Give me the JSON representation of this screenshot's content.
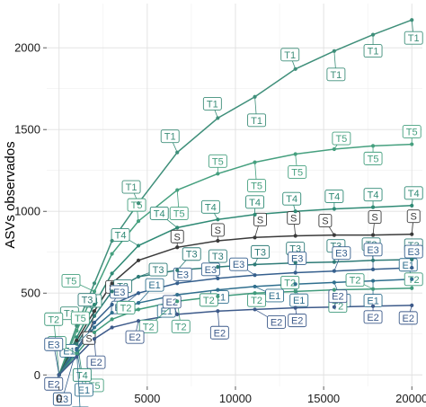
{
  "chart_data": {
    "type": "line",
    "title": "",
    "xlabel": "",
    "ylabel": "ASVs observados",
    "xlim": [
      -700,
      20600
    ],
    "ylim": [
      -70,
      2270
    ],
    "xticks": [
      0,
      5000,
      10000,
      15000,
      20000
    ],
    "xtick_labels": [
      "0",
      "5000",
      "10000",
      "15000",
      "20000"
    ],
    "yticks": [
      0,
      500,
      1000,
      1500,
      2000
    ],
    "ytick_labels": [
      "0",
      "500",
      "1000",
      "1500",
      "2000"
    ],
    "grid": true,
    "legend": "none",
    "series": [
      {
        "name": "T1",
        "color": "#3f8f7a",
        "x": [
          0,
          1000,
          2000,
          3000,
          4500,
          6700,
          9000,
          11100,
          13400,
          15600,
          17800,
          20000
        ],
        "y": [
          0,
          300,
          560,
          820,
          1050,
          1360,
          1570,
          1700,
          1870,
          1980,
          2080,
          2170
        ]
      },
      {
        "name": "T5",
        "color": "#46a07f",
        "x": [
          0,
          1000,
          2000,
          3000,
          4500,
          6700,
          9000,
          11100,
          13400,
          15600,
          17800,
          20000
        ],
        "y": [
          0,
          270,
          510,
          740,
          940,
          1130,
          1230,
          1300,
          1350,
          1380,
          1400,
          1410
        ]
      },
      {
        "name": "T4",
        "color": "#2f8a75",
        "x": [
          0,
          1000,
          2000,
          3000,
          4500,
          6700,
          9000,
          11100,
          13400,
          15600,
          17800,
          20000
        ],
        "y": [
          0,
          230,
          430,
          620,
          790,
          900,
          950,
          980,
          1000,
          1015,
          1025,
          1035
        ]
      },
      {
        "name": "S",
        "color": "#3a3a3a",
        "x": [
          0,
          1000,
          2000,
          3000,
          4500,
          6700,
          9000,
          11100,
          13400,
          15600,
          17800,
          20000
        ],
        "y": [
          0,
          210,
          390,
          560,
          700,
          780,
          820,
          840,
          850,
          855,
          855,
          860
        ]
      },
      {
        "name": "T3",
        "color": "#2e7b77",
        "x": [
          0,
          1000,
          2000,
          3000,
          4500,
          6700,
          9000,
          11100,
          13400,
          15600,
          17800,
          20000
        ],
        "y": [
          0,
          190,
          360,
          510,
          600,
          640,
          660,
          675,
          685,
          690,
          700,
          705
        ]
      },
      {
        "name": "E3",
        "color": "#355f8d",
        "x": [
          0,
          1000,
          2000,
          3000,
          4500,
          6700,
          9000,
          11100,
          13400,
          15600,
          17800,
          20000
        ],
        "y": [
          0,
          160,
          320,
          430,
          500,
          560,
          590,
          610,
          625,
          635,
          645,
          655
        ]
      },
      {
        "name": "E1",
        "color": "#2f6f8e",
        "x": [
          0,
          1000,
          2000,
          3000,
          4500,
          6700,
          9000,
          11100,
          13400,
          15600,
          17800,
          20000
        ],
        "y": [
          0,
          150,
          290,
          380,
          440,
          490,
          520,
          540,
          555,
          565,
          575,
          585
        ]
      },
      {
        "name": "T2",
        "color": "#3f9a7b",
        "x": [
          0,
          1000,
          2000,
          3000,
          4500,
          6700,
          9000,
          11100,
          13400,
          15600,
          17800,
          20000
        ],
        "y": [
          0,
          130,
          260,
          340,
          400,
          450,
          480,
          500,
          510,
          520,
          525,
          530
        ]
      },
      {
        "name": "E2",
        "color": "#3d5a8a",
        "x": [
          0,
          1000,
          2000,
          3000,
          4500,
          6700,
          9000,
          11100,
          13400,
          15600,
          17800,
          20000
        ],
        "y": [
          0,
          110,
          220,
          290,
          330,
          370,
          390,
          400,
          410,
          415,
          420,
          425
        ]
      }
    ],
    "point_labels": [
      {
        "text": "T1",
        "series": "T1",
        "x": 4500,
        "y": 1050,
        "dx": -8,
        "dy": -18
      },
      {
        "text": "T1",
        "series": "T1",
        "x": 6700,
        "y": 1360,
        "dx": -8,
        "dy": -18
      },
      {
        "text": "T1",
        "series": "T1",
        "x": 9000,
        "y": 1570,
        "dx": -6,
        "dy": -16
      },
      {
        "text": "T1",
        "series": "T1",
        "x": 11100,
        "y": 1700,
        "dx": 2,
        "dy": 26
      },
      {
        "text": "T1",
        "series": "T1",
        "x": 13400,
        "y": 1870,
        "dx": -6,
        "dy": -16
      },
      {
        "text": "T1",
        "series": "T1",
        "x": 15600,
        "y": 1980,
        "dx": 2,
        "dy": 26
      },
      {
        "text": "T1",
        "series": "T1",
        "x": 17800,
        "y": 2080,
        "dx": 0,
        "dy": 18
      },
      {
        "text": "T1",
        "series": "T1",
        "x": 20000,
        "y": 2170,
        "dx": 2,
        "dy": 20
      },
      {
        "text": "T1",
        "series": "T1",
        "x": 1000,
        "y": 300,
        "dx": -8,
        "dy": -14
      },
      {
        "text": "T5",
        "series": "T5",
        "x": 1000,
        "y": 270,
        "dx": 4,
        "dy": -14
      },
      {
        "text": "T5",
        "series": "T5",
        "x": 2000,
        "y": 510,
        "dx": -26,
        "dy": -12
      },
      {
        "text": "T5",
        "series": "T5",
        "x": 4500,
        "y": 940,
        "dx": -2,
        "dy": -18
      },
      {
        "text": "T5",
        "series": "T5",
        "x": 6700,
        "y": 1130,
        "dx": 2,
        "dy": 26
      },
      {
        "text": "T5",
        "series": "T5",
        "x": 9000,
        "y": 1230,
        "dx": 0,
        "dy": -14
      },
      {
        "text": "T5",
        "series": "T5",
        "x": 11100,
        "y": 1300,
        "dx": 2,
        "dy": 26
      },
      {
        "text": "T5",
        "series": "T5",
        "x": 13400,
        "y": 1350,
        "dx": 2,
        "dy": 20
      },
      {
        "text": "T5",
        "series": "T5",
        "x": 15600,
        "y": 1380,
        "dx": 8,
        "dy": -12
      },
      {
        "text": "T5",
        "series": "T5",
        "x": 17800,
        "y": 1400,
        "dx": 0,
        "dy": 14
      },
      {
        "text": "T5",
        "series": "T5",
        "x": 20000,
        "y": 1410,
        "dx": 0,
        "dy": -14
      },
      {
        "text": "T5",
        "series": "T5",
        "x": 1500,
        "y": -20,
        "dx": 10,
        "dy": 8
      },
      {
        "text": "T4",
        "series": "T4",
        "x": 2000,
        "y": 430,
        "dx": -2,
        "dy": -4
      },
      {
        "text": "T4",
        "series": "T4",
        "x": 4500,
        "y": 790,
        "dx": -20,
        "dy": -12
      },
      {
        "text": "T4",
        "series": "T4",
        "x": 6700,
        "y": 900,
        "dx": -20,
        "dy": -16
      },
      {
        "text": "T4",
        "series": "T4",
        "x": 9000,
        "y": 950,
        "dx": -8,
        "dy": -14
      },
      {
        "text": "T4",
        "series": "T4",
        "x": 11100,
        "y": 980,
        "dx": 0,
        "dy": -14
      },
      {
        "text": "T4",
        "series": "T4",
        "x": 13400,
        "y": 1000,
        "dx": -4,
        "dy": -14
      },
      {
        "text": "T4",
        "series": "T4",
        "x": 15600,
        "y": 1015,
        "dx": 0,
        "dy": -14
      },
      {
        "text": "T4",
        "series": "T4",
        "x": 17800,
        "y": 1025,
        "dx": 0,
        "dy": -14
      },
      {
        "text": "T4",
        "series": "T4",
        "x": 20000,
        "y": 1035,
        "dx": 2,
        "dy": -14
      },
      {
        "text": "S",
        "series": "S",
        "x": 2000,
        "y": 390,
        "dx": -6,
        "dy": 30
      },
      {
        "text": "S",
        "series": "S",
        "x": 3000,
        "y": 560,
        "dx": 0,
        "dy": 4
      },
      {
        "text": "S",
        "series": "S",
        "x": 6700,
        "y": 780,
        "dx": 0,
        "dy": -12
      },
      {
        "text": "S",
        "series": "S",
        "x": 9000,
        "y": 820,
        "dx": 0,
        "dy": -12
      },
      {
        "text": "S",
        "series": "S",
        "x": 11100,
        "y": 840,
        "dx": 6,
        "dy": -20
      },
      {
        "text": "S",
        "series": "S",
        "x": 13400,
        "y": 850,
        "dx": -2,
        "dy": -20
      },
      {
        "text": "S",
        "series": "S",
        "x": 15600,
        "y": 855,
        "dx": -10,
        "dy": -16
      },
      {
        "text": "S",
        "series": "S",
        "x": 17800,
        "y": 855,
        "dx": 2,
        "dy": -20
      },
      {
        "text": "S",
        "series": "S",
        "x": 20000,
        "y": 860,
        "dx": 2,
        "dy": -20
      },
      {
        "text": "T3",
        "series": "T3",
        "x": 2000,
        "y": 360,
        "dx": -8,
        "dy": -18
      },
      {
        "text": "T3",
        "series": "T3",
        "x": 3000,
        "y": 510,
        "dx": 12,
        "dy": -6
      },
      {
        "text": "T3",
        "series": "T3",
        "x": 4500,
        "y": 600,
        "dx": 22,
        "dy": -8
      },
      {
        "text": "T3",
        "series": "T3",
        "x": 6700,
        "y": 640,
        "dx": 16,
        "dy": -18
      },
      {
        "text": "T3",
        "series": "T3",
        "x": 9000,
        "y": 660,
        "dx": 0,
        "dy": -12
      },
      {
        "text": "T3",
        "series": "T3",
        "x": 11100,
        "y": 675,
        "dx": 6,
        "dy": -14
      },
      {
        "text": "T3",
        "series": "T3",
        "x": 13400,
        "y": 685,
        "dx": 0,
        "dy": -16
      },
      {
        "text": "T3",
        "series": "T3",
        "x": 15600,
        "y": 690,
        "dx": 2,
        "dy": -18
      },
      {
        "text": "T3",
        "series": "T3",
        "x": 17800,
        "y": 700,
        "dx": -2,
        "dy": -18
      },
      {
        "text": "T3",
        "series": "T3",
        "x": 20000,
        "y": 705,
        "dx": 2,
        "dy": -16
      },
      {
        "text": "E3",
        "series": "E3",
        "x": 1000,
        "y": 160,
        "dx": -16,
        "dy": 56
      },
      {
        "text": "E3",
        "series": "E3",
        "x": 3000,
        "y": 430,
        "dx": 8,
        "dy": -14
      },
      {
        "text": "E3",
        "series": "E3",
        "x": 4500,
        "y": 500,
        "dx": -20,
        "dy": 16
      },
      {
        "text": "E3",
        "series": "E3",
        "x": 6700,
        "y": 560,
        "dx": 6,
        "dy": -10
      },
      {
        "text": "E3",
        "series": "E3",
        "x": 9000,
        "y": 590,
        "dx": -8,
        "dy": -10
      },
      {
        "text": "E3",
        "series": "E3",
        "x": 11100,
        "y": 610,
        "dx": -18,
        "dy": -12
      },
      {
        "text": "E3",
        "series": "E3",
        "x": 13400,
        "y": 625,
        "dx": 2,
        "dy": -16
      },
      {
        "text": "E3",
        "series": "E3",
        "x": 15600,
        "y": 635,
        "dx": 8,
        "dy": -20
      },
      {
        "text": "E3",
        "series": "E3",
        "x": 17800,
        "y": 645,
        "dx": 0,
        "dy": -22
      },
      {
        "text": "E3",
        "series": "E3",
        "x": 20000,
        "y": 655,
        "dx": 2,
        "dy": -18
      },
      {
        "text": "E1",
        "series": "E1",
        "x": 1000,
        "y": 150,
        "dx": 8,
        "dy": 44
      },
      {
        "text": "E1",
        "series": "E1",
        "x": 2000,
        "y": 290,
        "dx": -28,
        "dy": 26
      },
      {
        "text": "E1",
        "series": "E1",
        "x": 4500,
        "y": 440,
        "dx": 18,
        "dy": -20
      },
      {
        "text": "E1",
        "series": "E1",
        "x": 6700,
        "y": 490,
        "dx": -12,
        "dy": 18
      },
      {
        "text": "E1",
        "series": "E1",
        "x": 9000,
        "y": 520,
        "dx": 2,
        "dy": 8
      },
      {
        "text": "E1",
        "series": "E1",
        "x": 11100,
        "y": 540,
        "dx": 22,
        "dy": 10
      },
      {
        "text": "E1",
        "series": "E1",
        "x": 13400,
        "y": 555,
        "dx": 4,
        "dy": 18
      },
      {
        "text": "E1",
        "series": "E1",
        "x": 15600,
        "y": 565,
        "dx": 8,
        "dy": 20
      },
      {
        "text": "E1",
        "series": "E1",
        "x": 17800,
        "y": 575,
        "dx": 0,
        "dy": 22
      },
      {
        "text": "E1",
        "series": "E1",
        "x": 20000,
        "y": 585,
        "dx": -4,
        "dy": -16
      },
      {
        "text": "T2",
        "series": "T2",
        "x": 1000,
        "y": 130,
        "dx": -22,
        "dy": -12
      },
      {
        "text": "T2",
        "series": "T2",
        "x": 4500,
        "y": 400,
        "dx": -14,
        "dy": -2
      },
      {
        "text": "T2",
        "series": "T2",
        "x": 6700,
        "y": 450,
        "dx": -32,
        "dy": 28
      },
      {
        "text": "T2",
        "series": "T2",
        "x": 9000,
        "y": 480,
        "dx": -10,
        "dy": 4
      },
      {
        "text": "T2",
        "series": "T2",
        "x": 11100,
        "y": 500,
        "dx": 2,
        "dy": 8
      },
      {
        "text": "T2",
        "series": "T2",
        "x": 13400,
        "y": 510,
        "dx": -6,
        "dy": -10
      },
      {
        "text": "T2",
        "series": "T2",
        "x": 15600,
        "y": 520,
        "dx": 4,
        "dy": 18
      },
      {
        "text": "T2",
        "series": "T2",
        "x": 17800,
        "y": 525,
        "dx": -20,
        "dy": -10
      },
      {
        "text": "T2",
        "series": "T2",
        "x": 20000,
        "y": 530,
        "dx": 2,
        "dy": -10
      },
      {
        "text": "T2",
        "series": "T2",
        "x": 6700,
        "y": 450,
        "dx": 4,
        "dy": 28
      },
      {
        "text": "E2",
        "series": "E2",
        "x": 0,
        "y": 0,
        "dx": -6,
        "dy": 10
      },
      {
        "text": "E2",
        "series": "E2",
        "x": 2000,
        "y": 220,
        "dx": 2,
        "dy": 26
      },
      {
        "text": "E2",
        "series": "E2",
        "x": 4500,
        "y": 330,
        "dx": -4,
        "dy": 18
      },
      {
        "text": "E2",
        "series": "E2",
        "x": 6700,
        "y": 370,
        "dx": -6,
        "dy": -14
      },
      {
        "text": "E2",
        "series": "E2",
        "x": 9000,
        "y": 390,
        "dx": 2,
        "dy": 24
      },
      {
        "text": "E2",
        "series": "E2",
        "x": 11100,
        "y": 400,
        "dx": 24,
        "dy": 14
      },
      {
        "text": "E2",
        "series": "E2",
        "x": 13400,
        "y": 410,
        "dx": 2,
        "dy": 14
      },
      {
        "text": "E2",
        "series": "E2",
        "x": 15600,
        "y": 415,
        "dx": 4,
        "dy": -12
      },
      {
        "text": "E2",
        "series": "E2",
        "x": 17800,
        "y": 420,
        "dx": 0,
        "dy": 12
      },
      {
        "text": "E2",
        "series": "E2",
        "x": 20000,
        "y": 425,
        "dx": -4,
        "dy": 14
      },
      {
        "text": "T2",
        "series": "T2",
        "x": 0,
        "y": 0,
        "dx": -6,
        "dy": -62
      },
      {
        "text": "E3",
        "series": "E3",
        "x": 0,
        "y": 0,
        "dx": -6,
        "dy": -34
      },
      {
        "text": "T4",
        "series": "T4",
        "x": 1000,
        "y": 230,
        "dx": 6,
        "dy": 42
      },
      {
        "text": "E1",
        "series": "E1",
        "x": 1000,
        "y": 150,
        "dx": 4,
        "dy": 70
      }
    ]
  }
}
